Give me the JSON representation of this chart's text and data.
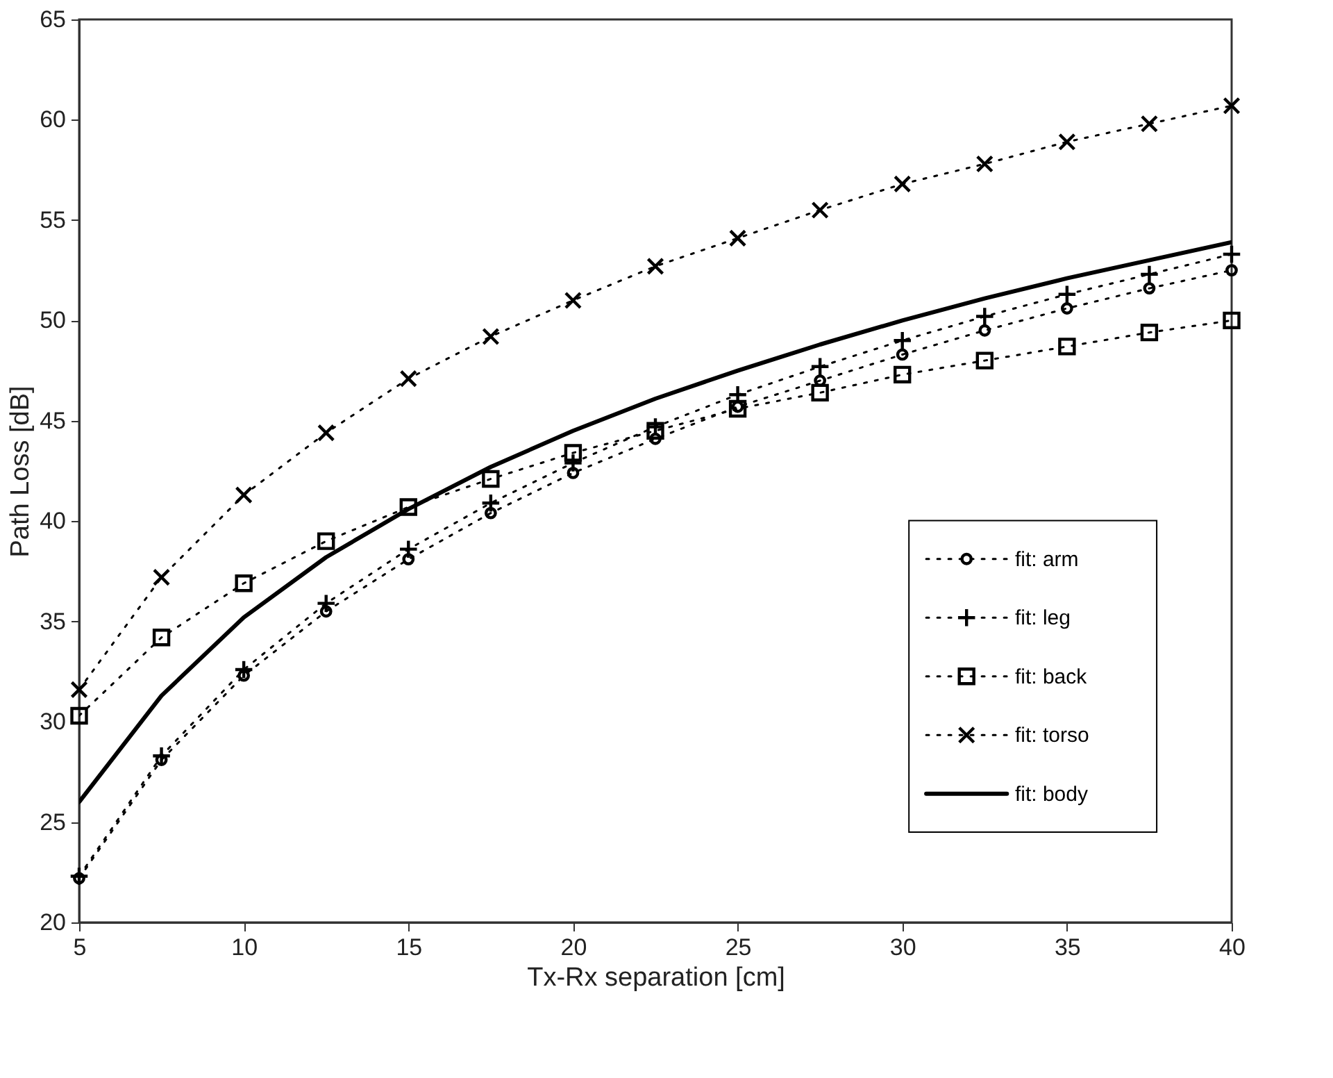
{
  "chart_data": {
    "type": "line",
    "xlabel": "Tx-Rx separation [cm]",
    "ylabel": "Path Loss [dB]",
    "x": [
      5,
      7.5,
      10,
      12.5,
      15,
      17.5,
      20,
      22.5,
      25,
      27.5,
      30,
      32.5,
      35,
      37.5,
      40
    ],
    "series": [
      {
        "name": "fit: arm",
        "color": "#000000",
        "marker": "circle",
        "line_style": "dotted",
        "values": [
          22.2,
          28.1,
          32.3,
          35.5,
          38.1,
          40.4,
          42.4,
          44.1,
          45.7,
          47.0,
          48.3,
          49.5,
          50.6,
          51.6,
          52.5
        ]
      },
      {
        "name": "fit: leg",
        "color": "#000000",
        "marker": "plus",
        "line_style": "dotted",
        "values": [
          22.3,
          28.3,
          32.6,
          35.9,
          38.6,
          40.9,
          42.9,
          44.7,
          46.3,
          47.7,
          49.0,
          50.2,
          51.3,
          52.3,
          53.3
        ]
      },
      {
        "name": "fit: back",
        "color": "#000000",
        "marker": "square",
        "line_style": "dotted",
        "values": [
          30.3,
          34.2,
          36.9,
          39.0,
          40.7,
          42.1,
          43.4,
          44.5,
          45.6,
          46.4,
          47.3,
          48.0,
          48.7,
          49.4,
          50.0
        ]
      },
      {
        "name": "fit: torso",
        "color": "#000000",
        "marker": "cross",
        "line_style": "dotted",
        "values": [
          31.6,
          37.2,
          41.3,
          44.4,
          47.1,
          49.2,
          51.0,
          52.7,
          54.1,
          55.5,
          56.8,
          57.8,
          58.9,
          59.8,
          60.7
        ]
      },
      {
        "name": "fit: body",
        "color": "#000000",
        "marker": "none",
        "line_style": "solid",
        "values": [
          26.0,
          31.3,
          35.2,
          38.2,
          40.6,
          42.7,
          44.5,
          46.1,
          47.5,
          48.8,
          50.0,
          51.1,
          52.1,
          53.0,
          53.9
        ]
      }
    ],
    "xlim": [
      5,
      40
    ],
    "xticks": [
      5,
      10,
      15,
      20,
      25,
      30,
      35,
      40
    ],
    "ylim": [
      20,
      65
    ],
    "yticks": [
      20,
      25,
      30,
      35,
      40,
      45,
      50,
      55,
      60,
      65
    ],
    "grid": false,
    "legend": "bottom right"
  }
}
